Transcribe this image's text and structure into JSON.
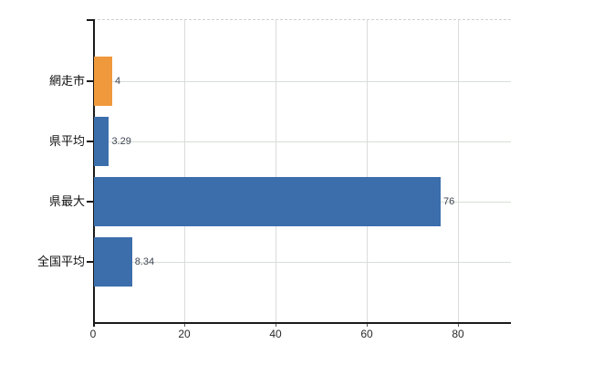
{
  "chart_data": {
    "type": "bar",
    "orientation": "horizontal",
    "title": "",
    "xlabel": "",
    "ylabel": "",
    "categories": [
      "網走市",
      "県平均",
      "県最大",
      "全国平均"
    ],
    "values": [
      4,
      3.29,
      76,
      8.34
    ],
    "value_labels": [
      "4",
      "3.29",
      "76",
      "8.34"
    ],
    "series_colors": [
      "#f0983c",
      "#3c6eac",
      "#3c6eac",
      "#3c6eac"
    ],
    "highlight_category": "網走市",
    "x_ticks": [
      0,
      20,
      40,
      60,
      80
    ],
    "x_tick_labels": [
      "0",
      "20",
      "40",
      "60",
      "80"
    ],
    "xlim": [
      0,
      91.6
    ],
    "grid": "on",
    "legend": "none"
  },
  "colors": {
    "background": "#ffffff",
    "bar_blue": "#3c6eac",
    "bar_orange": "#f0983c",
    "grid_line_h": "#d6ded6",
    "grid_line_v": "#dcdcdc",
    "plot_border_dashed": "#cfcfcf",
    "axis": "#1a1a1a",
    "tick_below_axis": "#5a5a5a",
    "value_label_text": "#3f4652",
    "x_tick_label_text": "#2b2b2b",
    "category_label_text": "#111111"
  }
}
